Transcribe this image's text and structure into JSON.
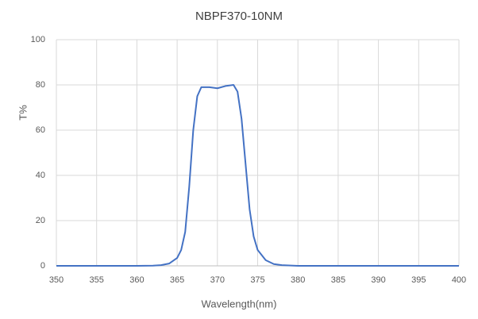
{
  "chart_data": {
    "type": "line",
    "title": "NBPF370-10NM",
    "x_label": "Wavelength(nm)",
    "y_label": "T%",
    "xlim": [
      350,
      400
    ],
    "xticks": [
      350,
      355,
      360,
      365,
      370,
      375,
      380,
      385,
      390,
      395,
      400
    ],
    "ylim": [
      0,
      100
    ],
    "yticks": [
      0,
      20,
      40,
      60,
      80,
      100
    ],
    "grid": true,
    "series": [
      {
        "color": "#4472c4",
        "x": [
          350,
          355,
          360,
          362,
          363,
          364,
          365,
          365.5,
          366,
          366.5,
          367,
          367.5,
          368,
          369,
          370,
          371,
          372,
          372.5,
          373,
          373.5,
          374,
          374.5,
          375,
          376,
          377,
          378,
          380,
          390,
          400
        ],
        "values": [
          0,
          0,
          0,
          0.1,
          0.3,
          1,
          3.5,
          7,
          15,
          35,
          60,
          75,
          79,
          79,
          78.5,
          79.5,
          80,
          77,
          65,
          45,
          25,
          13,
          7,
          2.5,
          0.8,
          0.3,
          0,
          0,
          0
        ]
      }
    ]
  }
}
